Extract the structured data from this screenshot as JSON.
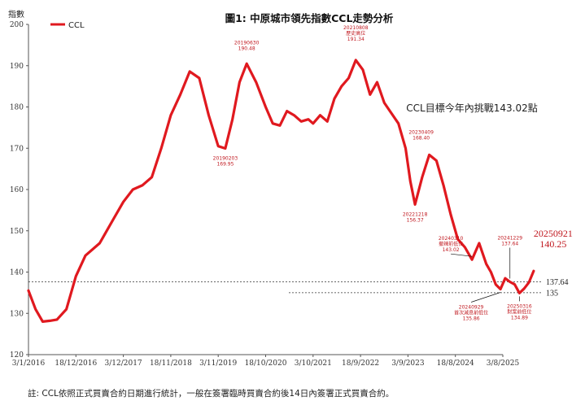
{
  "chart_data": {
    "type": "line",
    "title": "圖1: 中原城市領先指數CCL走勢分析",
    "subtitle": "CCL目標今年內挑戰143.02點",
    "ylabel": "指數",
    "ylim": [
      120,
      200
    ],
    "yticks": [
      "120",
      "130",
      "140",
      "150",
      "160",
      "170",
      "180",
      "190",
      "200"
    ],
    "xticks": [
      "3/1/2016",
      "18/12/2016",
      "3/12/2017",
      "18/11/2018",
      "3/11/2019",
      "18/10/2020",
      "3/10/2021",
      "18/9/2022",
      "3/9/2023",
      "18/8/2024",
      "3/8/2025"
    ],
    "series": [
      {
        "name": "CCL",
        "color": "#e0191f",
        "x": [
          0,
          0.15,
          0.3,
          0.45,
          0.6,
          0.8,
          1.0,
          1.2,
          1.5,
          1.8,
          2.0,
          2.2,
          2.4,
          2.6,
          2.8,
          3.0,
          3.2,
          3.4,
          3.6,
          3.8,
          4.0,
          4.15,
          4.3,
          4.45,
          4.6,
          4.8,
          5.0,
          5.15,
          5.3,
          5.45,
          5.6,
          5.75,
          5.9,
          6.0,
          6.15,
          6.3,
          6.45,
          6.6,
          6.75,
          6.9,
          7.05,
          7.2,
          7.35,
          7.5,
          7.65,
          7.8,
          7.95,
          8.05,
          8.15,
          8.3,
          8.45,
          8.6,
          8.75,
          8.9,
          9.05,
          9.2,
          9.35,
          9.5,
          9.65,
          9.75,
          9.85,
          9.95,
          10.05,
          10.15,
          10.25,
          10.35,
          10.45,
          10.55,
          10.65
        ],
        "values": [
          135.5,
          131.0,
          128.0,
          128.2,
          128.5,
          131.0,
          139.0,
          144.0,
          147.0,
          153.0,
          157.0,
          160.0,
          161.0,
          163.0,
          170.0,
          178.0,
          183.0,
          188.6,
          187.0,
          178.0,
          170.5,
          169.95,
          177.0,
          186.0,
          190.48,
          186.0,
          180.0,
          176.0,
          175.5,
          179.0,
          178.0,
          176.5,
          177.0,
          176.0,
          178.0,
          176.5,
          182.0,
          185.0,
          187.0,
          191.34,
          189.0,
          183.0,
          186.0,
          181.0,
          178.5,
          176.0,
          170.0,
          162.0,
          156.37,
          163.0,
          168.4,
          167.0,
          161.0,
          154.0,
          148.0,
          146.0,
          143.02,
          147.0,
          142.0,
          140.0,
          137.0,
          135.86,
          138.5,
          137.64,
          137.0,
          134.89,
          136.0,
          137.5,
          140.25
        ]
      }
    ],
    "reference_lines": [
      {
        "value": 137.64,
        "label": "137.64"
      },
      {
        "value": 135,
        "label": "135"
      }
    ],
    "annotations": [
      {
        "x": 4.15,
        "value": 169.95,
        "date": "20190203",
        "text": "",
        "price": "169.95"
      },
      {
        "x": 4.6,
        "value": 190.48,
        "date": "20190630",
        "text": "",
        "price": "190.48"
      },
      {
        "x": 6.9,
        "value": 191.34,
        "date": "20210808",
        "text": "歷史高位",
        "price": "191.34"
      },
      {
        "x": 8.15,
        "value": 156.37,
        "date": "20221218",
        "text": "",
        "price": "156.37"
      },
      {
        "x": 8.45,
        "value": 168.4,
        "date": "20230409",
        "text": "",
        "price": "168.40"
      },
      {
        "x": 9.35,
        "value": 143.02,
        "date": "20240310",
        "text": "撤辣前低位",
        "price": "143.02"
      },
      {
        "x": 9.95,
        "value": 135.86,
        "date": "20240929",
        "text": "首次減息前低位",
        "price": "135.86"
      },
      {
        "x": 10.15,
        "value": 137.64,
        "date": "20241229",
        "text": "",
        "price": "137.64"
      },
      {
        "x": 10.35,
        "value": 134.89,
        "date": "20250316",
        "text": "財案前低位",
        "price": "134.89"
      },
      {
        "x": 10.65,
        "value": 140.25,
        "date": "20250921",
        "text": "",
        "price": "140.25"
      }
    ]
  },
  "footnote": "註: CCL依照正式買賣合約日期進行統計，一般在簽署臨時買賣合約後14日內簽署正式買賣合約。"
}
